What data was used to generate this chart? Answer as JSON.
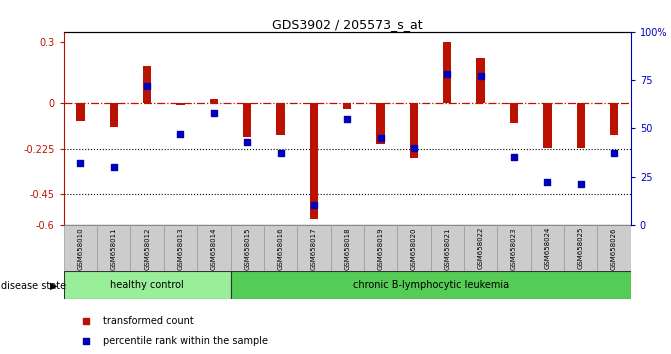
{
  "title": "GDS3902 / 205573_s_at",
  "samples": [
    "GSM658010",
    "GSM658011",
    "GSM658012",
    "GSM658013",
    "GSM658014",
    "GSM658015",
    "GSM658016",
    "GSM658017",
    "GSM658018",
    "GSM658019",
    "GSM658020",
    "GSM658021",
    "GSM658022",
    "GSM658023",
    "GSM658024",
    "GSM658025",
    "GSM658026"
  ],
  "transformed_count": [
    -0.09,
    -0.12,
    0.18,
    -0.01,
    0.02,
    -0.17,
    -0.16,
    -0.57,
    -0.03,
    -0.2,
    -0.27,
    0.3,
    0.22,
    -0.1,
    -0.22,
    -0.22,
    -0.16
  ],
  "percentile_rank": [
    32,
    30,
    72,
    47,
    58,
    43,
    37,
    10,
    55,
    45,
    40,
    78,
    77,
    35,
    22,
    21,
    37
  ],
  "group_labels": [
    "healthy control",
    "chronic B-lymphocytic leukemia"
  ],
  "group_boundary": 5,
  "healthy_color": "#99ee99",
  "leukemia_color": "#55cc55",
  "bar_color": "#bb1100",
  "dot_color": "#0000bb",
  "ylim_left": [
    -0.6,
    0.35
  ],
  "ylim_right": [
    0,
    100
  ],
  "yticks_left": [
    0.3,
    0.0,
    -0.225,
    -0.45,
    -0.6
  ],
  "yticks_left_labels": [
    "0.3",
    "0",
    "-0.225",
    "-0.45",
    "-0.6"
  ],
  "yticks_right": [
    100,
    75,
    50,
    25,
    0
  ],
  "yticks_right_labels": [
    "100%",
    "75",
    "50",
    "25",
    "0"
  ],
  "dotted_lines": [
    -0.225,
    -0.45
  ],
  "bg_color": "#ffffff",
  "legend_items": [
    "transformed count",
    "percentile rank within the sample"
  ],
  "disease_state_label": "disease state"
}
